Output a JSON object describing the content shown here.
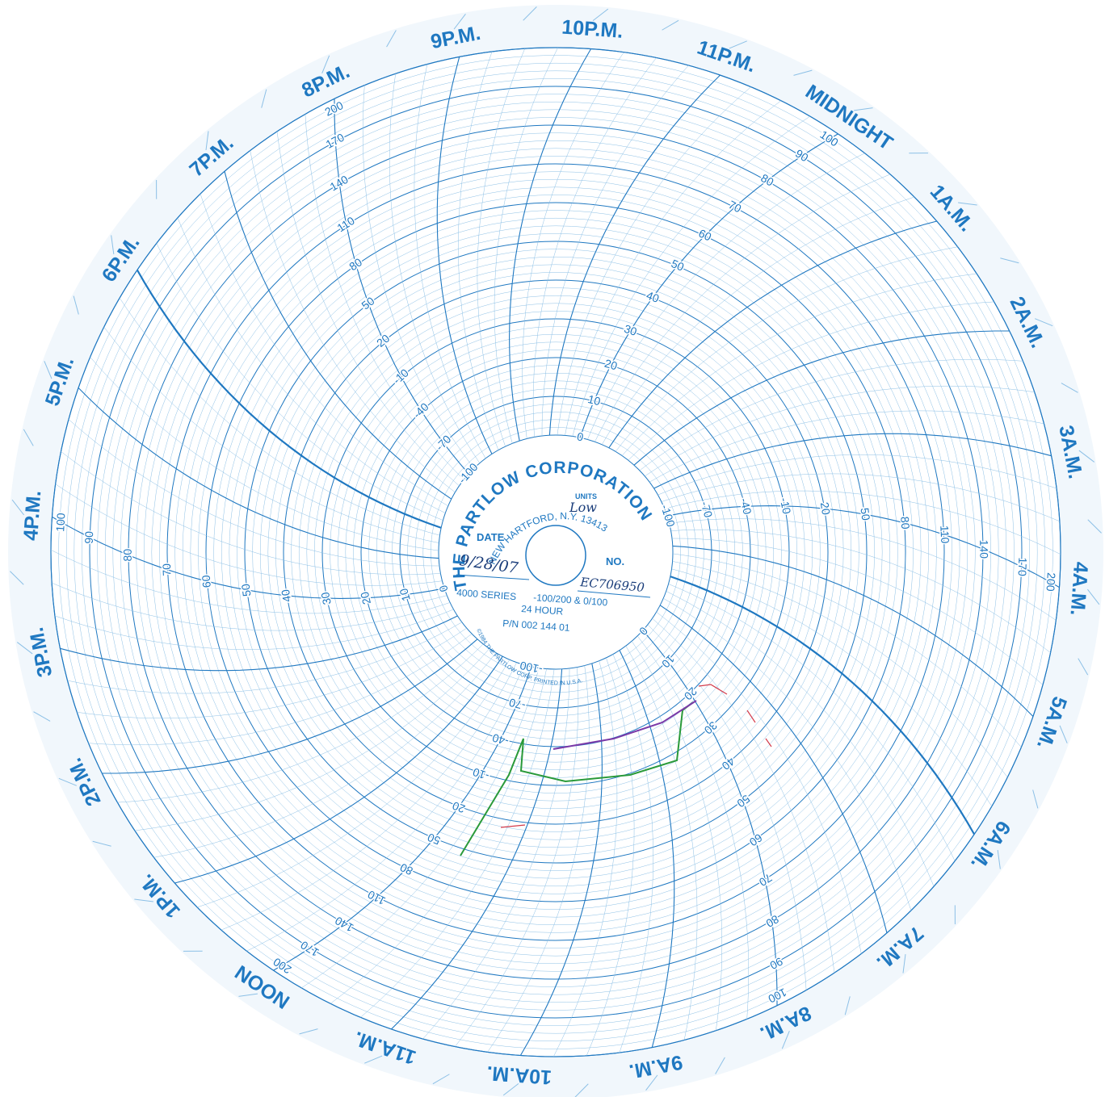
{
  "hour_labels": [
    "MIDNIGHT",
    "1A.M.",
    "2A.M.",
    "3A.M.",
    "4A.M.",
    "5A.M.",
    "6A.M.",
    "7A.M.",
    "8A.M.",
    "9A.M.",
    "10A.M.",
    "11A.M.",
    "NOON",
    "1P.M.",
    "2P.M.",
    "3P.M.",
    "4P.M.",
    "5P.M.",
    "6P.M.",
    "7P.M.",
    "8P.M.",
    "9P.M.",
    "10P.M.",
    "11P.M."
  ],
  "scale_wide": [
    -100,
    -70,
    -40,
    -10,
    20,
    50,
    80,
    110,
    140,
    170,
    200
  ],
  "scale_narrow": [
    0,
    10,
    20,
    30,
    40,
    50,
    60,
    70,
    80,
    90,
    100
  ],
  "hub": {
    "company": "THE PARTLOW CORPORATION",
    "address": "NEW HARTFORD, N.Y. 13413",
    "units_label": "UNITS",
    "units": "Low",
    "date_label": "DATE",
    "date": "9/28/07",
    "no_label": "NO.",
    "number": "EC706950",
    "series": "4000 SERIES",
    "range": "-100/200 & 0/100",
    "hours": "24 HOUR",
    "part_number": "P/N 002 144 01",
    "copyright": "©1984 THE PARTLOW CORP. PRINTED IN U.S.A."
  }
}
